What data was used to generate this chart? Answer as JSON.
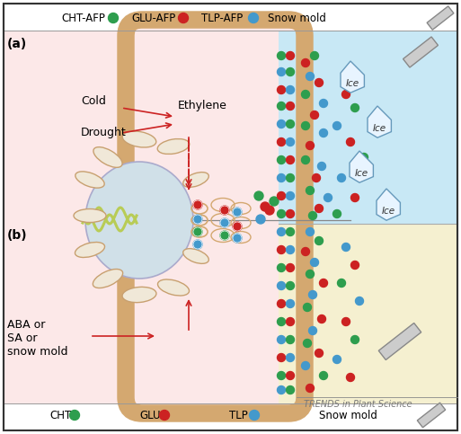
{
  "bg_color": "#ffffff",
  "cell_interior_color": "#fce8e8",
  "outer_top_color": "#c8e8f5",
  "outer_bot_color": "#f5f0d0",
  "cell_wall_color": "#d4a870",
  "nucleus_color": "#d0e0e8",
  "organelle_fill": "#f0e8d8",
  "organelle_edge": "#c8a070",
  "colors": {
    "CHT": "#2e9e4e",
    "GLU": "#cc2222",
    "TLP": "#4499cc"
  },
  "snow_mold_fill": "#cccccc",
  "snow_mold_edge": "#888888",
  "ice_fill": "#e8f4ff",
  "ice_edge": "#6699bb",
  "arrow_color": "#cc2222",
  "label_a": "(a)",
  "label_b": "(b)",
  "cold_text": "Cold",
  "drought_text": "Drought",
  "ethylene_text": "Ethylene",
  "aba_text": "ABA or\nSA or\nsnow mold",
  "ice_text": "Ice",
  "trends_text": "TRENDS in Plant Science"
}
